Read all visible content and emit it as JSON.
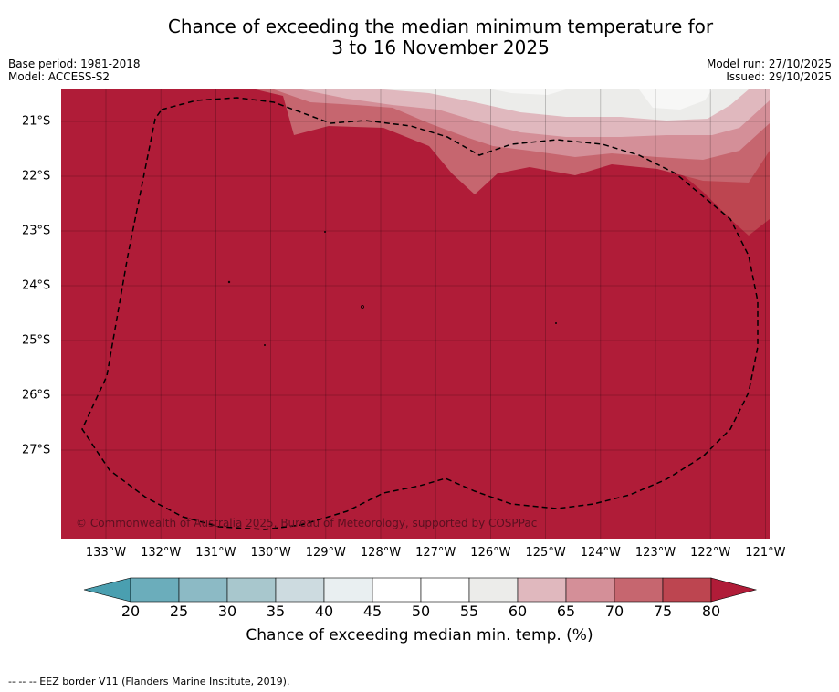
{
  "title": {
    "line1": "Chance of exceeding the median minimum temperature for",
    "line2": "3 to 16 November 2025"
  },
  "meta": {
    "base_period": "Base period: 1981-2018",
    "model": "Model: ACCESS-S2",
    "model_run": "Model run: 27/10/2025",
    "issued": "Issued: 29/10/2025"
  },
  "map": {
    "x_ticks": [
      "133°W",
      "132°W",
      "131°W",
      "130°W",
      "129°W",
      "128°W",
      "127°W",
      "126°W",
      "125°W",
      "124°W",
      "123°W",
      "122°W",
      "121°W"
    ],
    "y_ticks": [
      "21°S",
      "22°S",
      "23°S",
      "24°S",
      "25°S",
      "26°S",
      "27°S"
    ],
    "copyright": "© Commonwealth of Australia 2025, Bureau of Meteorology, supported by COSPPac",
    "colors": {
      "background": "#b01c38",
      "border": "#000000"
    }
  },
  "colorbar": {
    "labels": [
      "20",
      "25",
      "30",
      "35",
      "40",
      "45",
      "50",
      "55",
      "60",
      "65",
      "70",
      "75",
      "80"
    ],
    "colors": [
      "#6badbb",
      "#8cbac5",
      "#a8c7cd",
      "#cddbe0",
      "#e9eff1",
      "#ffffff",
      "#ffffff",
      "#ececea",
      "#e0b8be",
      "#d48f98",
      "#c6666f",
      "#bd4550"
    ],
    "under_color": "#4a9fb0",
    "over_color": "#b01c38",
    "title": "Chance of exceeding median min. temp. (%)"
  },
  "footer": "--  --  -- EEZ border V11 (Flanders Marine Institute, 2019)."
}
